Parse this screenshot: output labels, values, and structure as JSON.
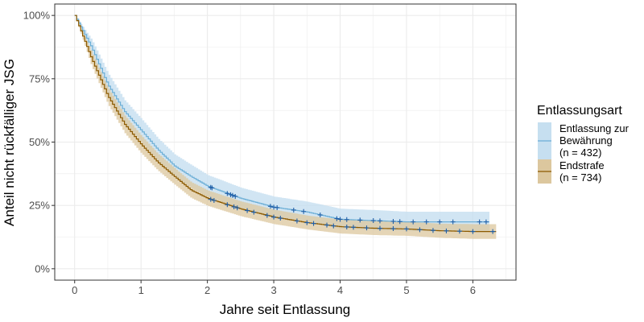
{
  "chart_data": {
    "type": "line",
    "subtype": "kaplan-meier step curves with confidence bands and censoring marks",
    "xlabel": "Jahre seit Entlassung",
    "ylabel": "Anteil nicht rückfälliger JSG",
    "xlim": [
      -0.3,
      6.65
    ],
    "ylim": [
      -0.045,
      1.045
    ],
    "x_ticks": [
      0,
      1,
      2,
      3,
      4,
      5,
      6
    ],
    "x_tick_labels": [
      "0",
      "1",
      "2",
      "3",
      "4",
      "5",
      "6"
    ],
    "y_ticks": [
      0,
      0.25,
      0.5,
      0.75,
      1
    ],
    "y_tick_labels": [
      "0%",
      "25%",
      "50%",
      "75%",
      "100%"
    ],
    "grid": true,
    "legend": {
      "title": "Entlassungsart",
      "placement": "right"
    },
    "series": [
      {
        "name": "Entlassung zur Bewährung (n = 432)",
        "label_lines": [
          "Entlassung zur",
          "Bewährung",
          "(n = 432)"
        ],
        "line_color": "#6baed6",
        "band_color": "#c6dff0",
        "censor_color": "#1f5fa8",
        "x": [
          0,
          0.25,
          0.5,
          0.75,
          1,
          1.25,
          1.5,
          1.75,
          2,
          2.5,
          3,
          3.5,
          4,
          4.5,
          5,
          5.5,
          6,
          6.25
        ],
        "y": [
          1,
          0.875,
          0.725,
          0.62,
          0.546,
          0.47,
          0.406,
          0.364,
          0.326,
          0.278,
          0.243,
          0.224,
          0.195,
          0.19,
          0.185,
          0.185,
          0.185,
          0.185
        ],
        "lower": [
          1,
          0.84,
          0.68,
          0.575,
          0.5,
          0.425,
          0.362,
          0.32,
          0.283,
          0.238,
          0.205,
          0.186,
          0.158,
          0.153,
          0.148,
          0.148,
          0.148,
          0.148
        ],
        "upper": [
          1,
          0.905,
          0.77,
          0.665,
          0.592,
          0.515,
          0.452,
          0.41,
          0.37,
          0.32,
          0.285,
          0.265,
          0.237,
          0.232,
          0.225,
          0.225,
          0.225,
          0.225
        ],
        "censored": [
          2.05,
          2.07,
          2.3,
          2.35,
          2.38,
          2.42,
          2.95,
          3.0,
          3.05,
          3.3,
          3.45,
          3.7,
          3.95,
          4.0,
          4.1,
          4.3,
          4.5,
          4.6,
          4.8,
          4.9,
          5.1,
          5.3,
          5.5,
          5.7,
          6.1,
          6.2
        ]
      },
      {
        "name": "Endstrafe (n = 734)",
        "label_lines": [
          "Endstrafe",
          "(n = 734)"
        ],
        "line_color": "#8c5a00",
        "band_color": "#dcc79e",
        "censor_color": "#1f5fa8",
        "x": [
          0,
          0.25,
          0.5,
          0.75,
          1,
          1.25,
          1.5,
          1.75,
          2,
          2.5,
          3,
          3.5,
          4,
          4.5,
          5,
          5.5,
          6,
          6.35
        ],
        "y": [
          1,
          0.83,
          0.68,
          0.57,
          0.49,
          0.42,
          0.364,
          0.31,
          0.278,
          0.236,
          0.204,
          0.182,
          0.166,
          0.16,
          0.157,
          0.15,
          0.147,
          0.147
        ],
        "lower": [
          1,
          0.8,
          0.647,
          0.535,
          0.455,
          0.387,
          0.332,
          0.279,
          0.248,
          0.207,
          0.176,
          0.155,
          0.139,
          0.133,
          0.13,
          0.122,
          0.118,
          0.118
        ],
        "upper": [
          1,
          0.857,
          0.713,
          0.605,
          0.525,
          0.454,
          0.397,
          0.342,
          0.309,
          0.266,
          0.233,
          0.21,
          0.194,
          0.188,
          0.185,
          0.178,
          0.176,
          0.176
        ],
        "censored": [
          2.05,
          2.1,
          2.3,
          2.4,
          2.45,
          2.6,
          2.7,
          2.9,
          3.0,
          3.1,
          3.35,
          3.5,
          3.6,
          3.8,
          3.9,
          4.1,
          4.2,
          4.4,
          4.6,
          4.8,
          5.0,
          5.2,
          5.4,
          5.6,
          5.8,
          6.0,
          6.3
        ]
      }
    ]
  }
}
